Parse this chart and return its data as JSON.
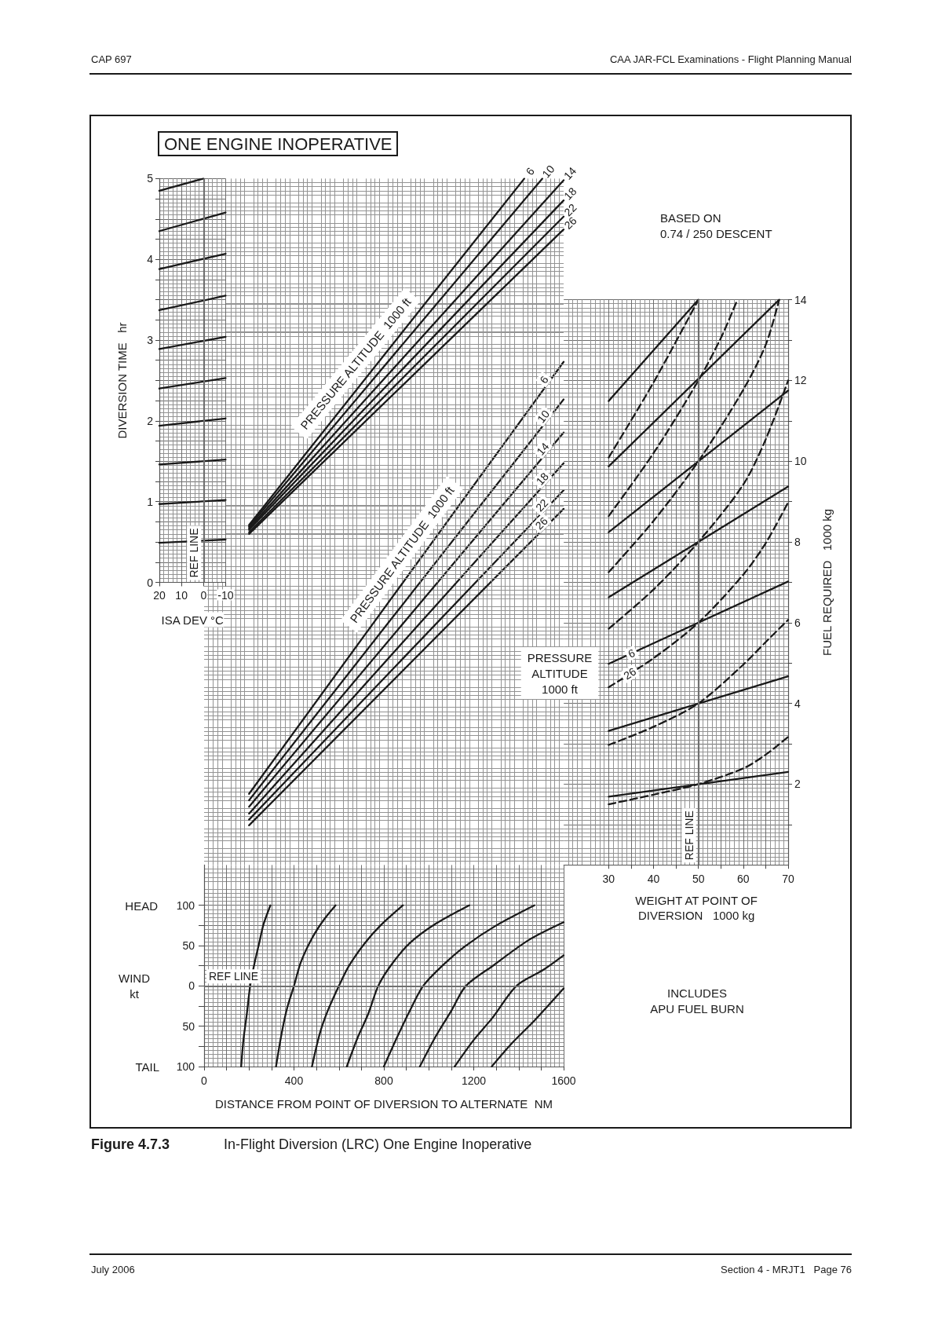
{
  "chart_data": [
    {
      "type": "line",
      "title": "ONE ENGINE INOPERATIVE",
      "xlabel": "ISA DEV °C",
      "ylabel": "DIVERSION TIME   hr",
      "xlim": [
        20,
        -10
      ],
      "xticks": [
        20,
        10,
        0,
        -10
      ],
      "ylim": [
        0,
        5
      ],
      "yticks": [
        0,
        {
          "value": 0.25,
          "label": null
        },
        {
          "value": 0.5,
          "label": null
        },
        {
          "value": 0.75,
          "label": null
        },
        1,
        {
          "value": 1.25,
          "label": null
        },
        {
          "value": 1.5,
          "label": null
        },
        {
          "value": 1.75,
          "label": null
        },
        2,
        {
          "value": 2.25,
          "label": null
        },
        {
          "value": 2.5,
          "label": null
        },
        {
          "value": 2.75,
          "label": null
        },
        3,
        {
          "value": 3.25,
          "label": null
        },
        {
          "value": 3.5,
          "label": null
        },
        {
          "value": 3.75,
          "label": null
        },
        4,
        {
          "value": 4.25,
          "label": null
        },
        {
          "value": 4.5,
          "label": null
        },
        {
          "value": 4.75,
          "label": null
        },
        5
      ],
      "grid": true,
      "marker": "none",
      "ref_lines": [
        {
          "axis": "x",
          "value": 0,
          "label": "REF LINE",
          "color": "#707070"
        }
      ],
      "series": [
        {
          "color": "#1a1a1a",
          "x": [
            20,
            -10
          ],
          "values": [
            0.49,
            0.53
          ]
        },
        {
          "color": "#1a1a1a",
          "x": [
            20,
            -10
          ],
          "values": [
            0.97,
            1.02
          ]
        },
        {
          "color": "#1a1a1a",
          "x": [
            20,
            -10
          ],
          "values": [
            1.46,
            1.52
          ]
        },
        {
          "color": "#1a1a1a",
          "x": [
            20,
            -10
          ],
          "values": [
            1.94,
            2.03
          ]
        },
        {
          "color": "#1a1a1a",
          "x": [
            20,
            -10
          ],
          "values": [
            2.4,
            2.53
          ]
        },
        {
          "color": "#1a1a1a",
          "x": [
            20,
            -10
          ],
          "values": [
            2.89,
            3.04
          ]
        },
        {
          "color": "#1a1a1a",
          "x": [
            20,
            -10
          ],
          "values": [
            3.37,
            3.55
          ]
        },
        {
          "color": "#1a1a1a",
          "x": [
            20,
            -10
          ],
          "values": [
            3.88,
            4.07
          ]
        },
        {
          "color": "#1a1a1a",
          "x": [
            20,
            -10
          ],
          "values": [
            4.35,
            4.58
          ]
        },
        {
          "color": "#1a1a1a",
          "x": [
            20,
            0
          ],
          "values": [
            4.85,
            5.0
          ]
        }
      ]
    },
    {
      "type": "line",
      "xlim": [
        0,
        1600
      ],
      "ylim": [
        0,
        5
      ],
      "tick_labels": false,
      "grid": true,
      "marker": "none",
      "annotations": [
        "PRESSURE ALTITUDE  1000 ft"
      ],
      "series": [
        {
          "name": "6",
          "color": "#1a1a1a",
          "x": [
            200,
            1425
          ],
          "values": [
            0.71,
            5.0
          ]
        },
        {
          "name": "10",
          "color": "#1a1a1a",
          "x": [
            200,
            1505
          ],
          "values": [
            0.69,
            5.0
          ]
        },
        {
          "name": "14",
          "color": "#1a1a1a",
          "x": [
            200,
            1600
          ],
          "values": [
            0.67,
            4.98
          ]
        },
        {
          "name": "18",
          "color": "#1a1a1a",
          "x": [
            200,
            1600
          ],
          "values": [
            0.65,
            4.73
          ]
        },
        {
          "name": "22",
          "color": "#1a1a1a",
          "x": [
            200,
            1600
          ],
          "values": [
            0.62,
            4.53
          ]
        },
        {
          "name": "26",
          "color": "#1a1a1a",
          "x": [
            200,
            1600
          ],
          "values": [
            0.6,
            4.37
          ]
        }
      ]
    },
    {
      "type": "line",
      "xlim": [
        0,
        1600
      ],
      "ylim": [
        0,
        14
      ],
      "tick_labels": false,
      "grid": true,
      "marker": "none",
      "annotations": [
        "PRESSURE ALTITUDE  1000 ft"
      ],
      "series": [
        {
          "name": "6",
          "color": "#1a1a1a",
          "x": [
            200,
            1600
          ],
          "values": [
            1.76,
            12.46
          ]
        },
        {
          "name": "10",
          "color": "#1a1a1a",
          "x": [
            200,
            1600
          ],
          "values": [
            1.6,
            11.53
          ]
        },
        {
          "name": "14",
          "color": "#1a1a1a",
          "x": [
            200,
            1600
          ],
          "values": [
            1.44,
            10.71
          ]
        },
        {
          "name": "18",
          "color": "#1a1a1a",
          "x": [
            200,
            1600
          ],
          "values": [
            1.27,
            9.95
          ]
        },
        {
          "name": "22",
          "color": "#1a1a1a",
          "x": [
            200,
            1600
          ],
          "values": [
            1.12,
            9.28
          ]
        },
        {
          "name": "26",
          "color": "#1a1a1a",
          "x": [
            200,
            1600
          ],
          "values": [
            0.98,
            8.82
          ]
        }
      ]
    },
    {
      "type": "line",
      "xlabel": "WEIGHT AT POINT OF\nDIVERSION   1000 kg",
      "ylabel": "FUEL REQUIRED   1000 kg",
      "xlim": [
        20,
        70
      ],
      "xticks": [
        30,
        {
          "value": 35,
          "label": null
        },
        40,
        {
          "value": 45,
          "label": null
        },
        50,
        {
          "value": 55,
          "label": null
        },
        60,
        {
          "value": 65,
          "label": null
        },
        70
      ],
      "ylim": [
        0,
        14
      ],
      "yticks": [
        {
          "value": 1,
          "label": null
        },
        2,
        {
          "value": 3,
          "label": null
        },
        4,
        {
          "value": 5,
          "label": null
        },
        6,
        {
          "value": 7,
          "label": null
        },
        8,
        {
          "value": 9,
          "label": null
        },
        10,
        {
          "value": 11,
          "label": null
        },
        12,
        {
          "value": 13,
          "label": null
        },
        14
      ],
      "grid": true,
      "marker": "none",
      "ref_lines": [
        {
          "axis": "x",
          "value": 50,
          "label": "REF LINE",
          "color": "#707070"
        }
      ],
      "annotations": [
        "BASED ON\n0.74 / 250 DESCENT",
        "PRESSURE\nALTITUDE\n1000 ft",
        "INCLUDES\nAPU FUEL BURN"
      ],
      "series": [
        {
          "color": "#1a1a1a",
          "x": [
            30,
            70
          ],
          "values": [
            1.69,
            2.3
          ]
        },
        {
          "color": "#1a1a1a",
          "x": [
            30,
            70
          ],
          "values": [
            3.32,
            4.67
          ]
        },
        {
          "name": "6",
          "color": "#1a1a1a",
          "x": [
            30,
            70
          ],
          "values": [
            4.98,
            7.02
          ]
        },
        {
          "color": "#1a1a1a",
          "x": [
            30,
            70
          ],
          "values": [
            6.63,
            9.37
          ]
        },
        {
          "color": "#1a1a1a",
          "x": [
            30,
            70
          ],
          "values": [
            8.24,
            11.75
          ]
        },
        {
          "color": "#1a1a1a",
          "x": [
            30,
            68
          ],
          "values": [
            9.87,
            14.0
          ]
        },
        {
          "color": "#1a1a1a",
          "x": [
            30,
            50
          ],
          "values": [
            11.49,
            14.0
          ]
        },
        {
          "color": "#1a1a1a",
          "line_style": "dashed",
          "x": [
            30,
            40,
            50,
            60,
            65,
            70
          ],
          "values": [
            1.5,
            1.74,
            2.0,
            2.39,
            2.73,
            3.17
          ]
        },
        {
          "color": "#1a1a1a",
          "line_style": "dashed",
          "x": [
            30,
            40,
            50,
            60,
            65,
            70
          ],
          "values": [
            2.97,
            3.42,
            4.0,
            4.96,
            5.52,
            6.07
          ]
        },
        {
          "name": "26",
          "color": "#1a1a1a",
          "line_style": "dashed",
          "x": [
            30,
            40,
            50,
            60,
            65,
            70
          ],
          "values": [
            4.4,
            5.12,
            6.0,
            7.19,
            7.97,
            8.98
          ]
        },
        {
          "color": "#1a1a1a",
          "line_style": "dashed",
          "x": [
            30,
            40,
            50,
            60,
            65,
            70
          ],
          "values": [
            5.85,
            6.82,
            8.0,
            9.42,
            10.54,
            12.0
          ]
        },
        {
          "color": "#1a1a1a",
          "line_style": "dashed",
          "x": [
            30,
            40,
            50,
            60,
            65,
            68
          ],
          "values": [
            7.25,
            8.52,
            10.0,
            11.77,
            12.88,
            14.0
          ]
        },
        {
          "color": "#1a1a1a",
          "line_style": "dashed",
          "x": [
            30,
            40,
            50,
            55,
            58.7
          ],
          "values": [
            8.64,
            10.2,
            12.0,
            13.05,
            14.0
          ]
        },
        {
          "color": "#1a1a1a",
          "line_style": "dashed",
          "x": [
            30,
            40,
            50
          ],
          "values": [
            10.09,
            11.95,
            14.0
          ]
        }
      ]
    },
    {
      "type": "line",
      "xlabel": "DISTANCE FROM POINT OF DIVERSION TO ALTERNATE  NM",
      "ylabel": "WIND\nkt",
      "xlim": [
        0,
        1600
      ],
      "xticks": [
        0,
        {
          "value": 100,
          "label": null
        },
        {
          "value": 200,
          "label": null
        },
        {
          "value": 300,
          "label": null
        },
        400,
        {
          "value": 500,
          "label": null
        },
        {
          "value": 600,
          "label": null
        },
        {
          "value": 700,
          "label": null
        },
        800,
        {
          "value": 900,
          "label": null
        },
        {
          "value": 1000,
          "label": null
        },
        {
          "value": 1100,
          "label": null
        },
        1200,
        {
          "value": 1300,
          "label": null
        },
        {
          "value": 1400,
          "label": null
        },
        {
          "value": 1500,
          "label": null
        },
        1600
      ],
      "ylim": [
        -100,
        150
      ],
      "yticks": [
        {
          "value": -100,
          "label": "100"
        },
        {
          "value": -75,
          "label": null
        },
        {
          "value": -50,
          "label": "50"
        },
        {
          "value": -25,
          "label": null
        },
        0,
        {
          "value": 25,
          "label": null
        },
        {
          "value": 50,
          "label": "50"
        },
        {
          "value": 75,
          "label": null
        },
        {
          "value": 100,
          "label": "100"
        }
      ],
      "grid": true,
      "marker": "none",
      "ref_lines": [
        {
          "axis": "y",
          "value": 0,
          "label": "REF LINE",
          "color": "#707070"
        }
      ],
      "annotations": [
        "HEAD",
        "TAIL"
      ],
      "series": [
        {
          "color": "#1a1a1a",
          "x": [
            165,
            175,
            190,
            205,
            225,
            245,
            265,
            295
          ],
          "values": [
            -100,
            -67,
            -35,
            0,
            29,
            53,
            77,
            100
          ]
        },
        {
          "color": "#1a1a1a",
          "x": [
            320,
            345,
            370,
            400,
            430,
            480,
            530,
            585
          ],
          "values": [
            -100,
            -59,
            -27,
            0,
            29,
            59,
            81,
            100
          ]
        },
        {
          "color": "#1a1a1a",
          "x": [
            480,
            515,
            550,
            600,
            645,
            715,
            785,
            885
          ],
          "values": [
            -100,
            -59,
            -31,
            0,
            25,
            53,
            75,
            100
          ]
        },
        {
          "color": "#1a1a1a",
          "x": [
            635,
            685,
            730,
            775,
            830,
            915,
            1030,
            1180
          ],
          "values": [
            -100,
            -63,
            -35,
            0,
            25,
            53,
            77,
            100
          ]
        },
        {
          "color": "#1a1a1a",
          "x": [
            800,
            860,
            915,
            975,
            1060,
            1160,
            1300,
            1470
          ],
          "values": [
            -100,
            -63,
            -31,
            0,
            25,
            49,
            75,
            100
          ]
        },
        {
          "color": "#1a1a1a",
          "x": [
            960,
            1030,
            1100,
            1165,
            1285,
            1445,
            1600
          ],
          "values": [
            -100,
            -63,
            -31,
            0,
            25,
            57,
            79
          ]
        },
        {
          "color": "#1a1a1a",
          "x": [
            1115,
            1200,
            1285,
            1390,
            1510,
            1600
          ],
          "values": [
            -100,
            -67,
            -39,
            0,
            20,
            38
          ]
        },
        {
          "color": "#1a1a1a",
          "x": [
            1280,
            1370,
            1470,
            1600
          ],
          "values": [
            -100,
            -71,
            -43,
            -3
          ]
        }
      ]
    },
    {
      "type": "other",
      "annotations": [
        "CAP 697",
        "CAA JAR-FCL Examinations - Flight Planning Manual",
        "Figure 4.7.3",
        "In-Flight Diversion (LRC) One Engine Inoperative",
        "July 2006",
        "Section 4 - MRJT1   Page 76"
      ]
    }
  ]
}
